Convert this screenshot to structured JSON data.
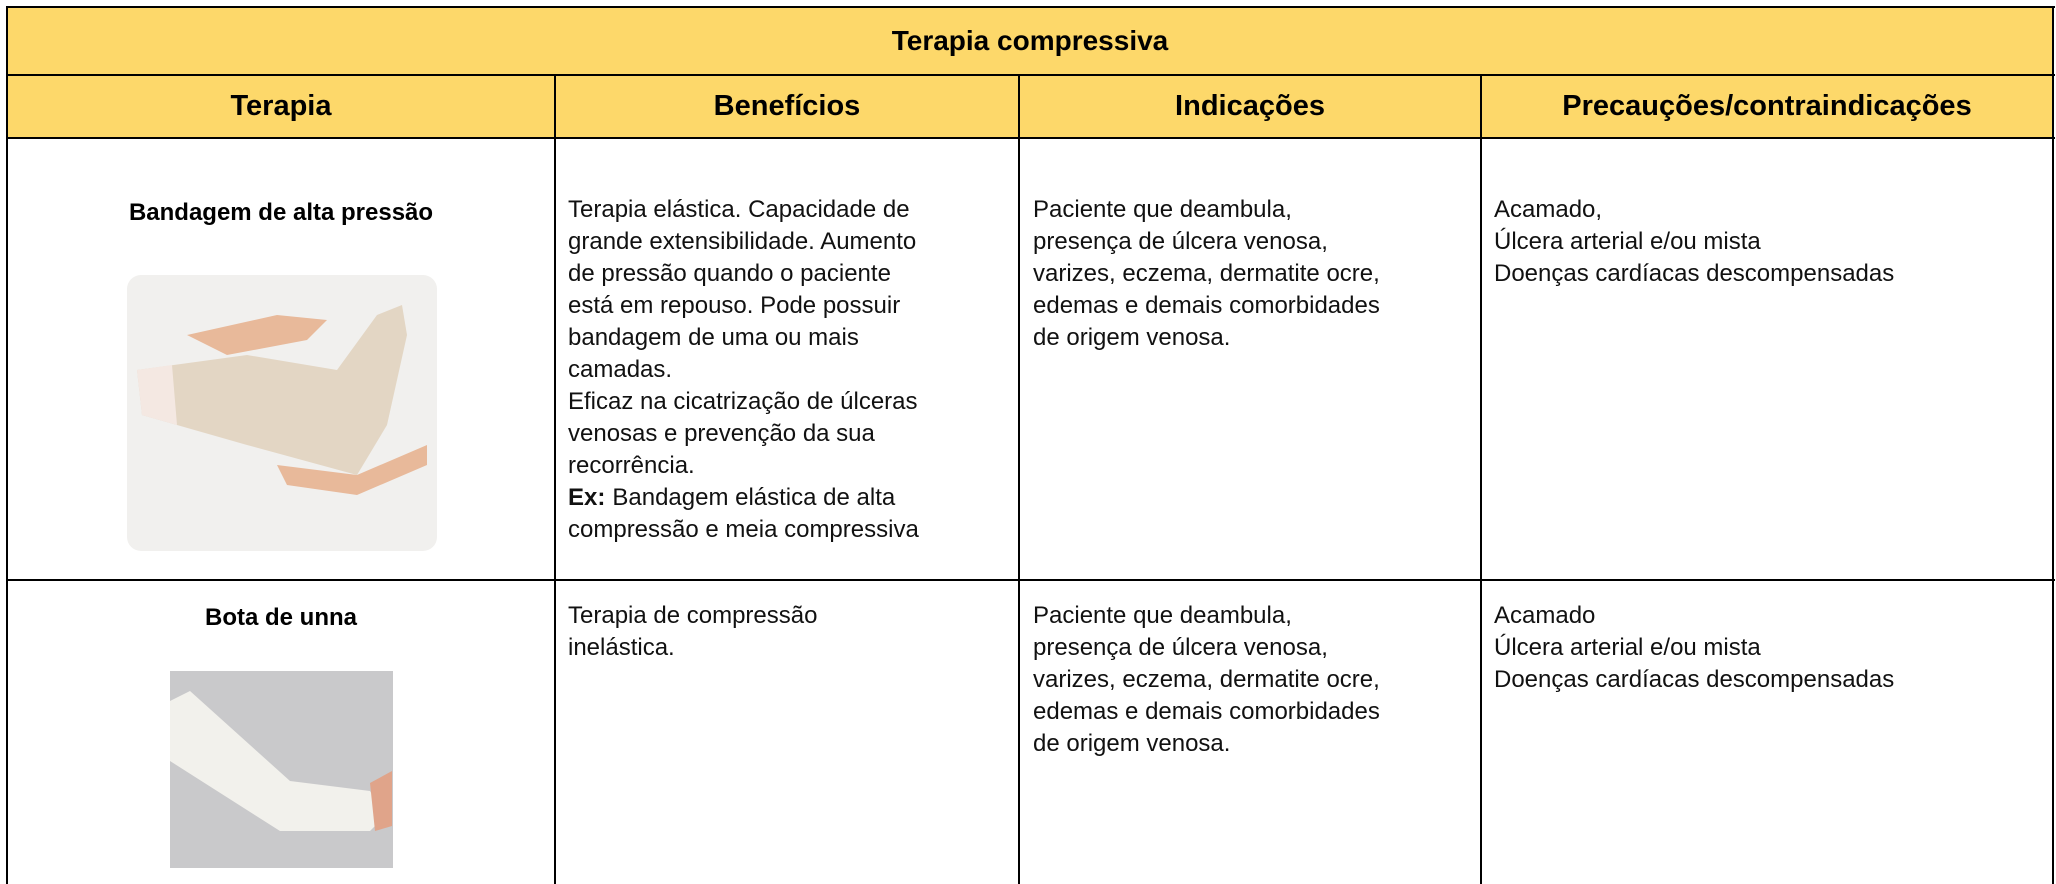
{
  "table": {
    "title": "Terapia compressiva",
    "headers": [
      "Terapia",
      "Benefícios",
      "Indicações",
      "Precauções/contraindicações"
    ],
    "rows": [
      {
        "therapy": "Bandagem de alta pressão",
        "benefits": [
          "Terapia elástica. Capacidade de",
          "grande extensibilidade. Aumento",
          "de pressão quando o paciente",
          "está em repouso. Pode possuir",
          "bandagem de uma ou mais",
          "camadas.",
          "Eficaz na cicatrização de úlceras",
          "venosas e prevenção da sua",
          "recorrência.",
          {
            "label": "Ex:",
            "text": "Bandagem elástica de alta"
          },
          "compressão e meia compressiva"
        ],
        "indications": [
          "Paciente que deambula,",
          "presença de úlcera venosa,",
          "varizes, eczema, dermatite ocre,",
          "edemas e demais comorbidades",
          "de origem venosa."
        ],
        "precautions": [
          "Acamado,",
          "Úlcera arterial e/ou mista",
          "Doenças cardíacas descompensadas"
        ]
      },
      {
        "therapy": "Bota de unna",
        "benefits": [
          "Terapia de compressão",
          "inelástica."
        ],
        "indications": [
          "Paciente que deambula,",
          "presença de úlcera venosa,",
          "varizes, eczema, dermatite ocre,",
          "edemas e demais comorbidades",
          "de origem venosa."
        ],
        "precautions": [
          "Acamado",
          "Úlcera arterial e/ou mista",
          "Doenças cardíacas descompensadas"
        ]
      }
    ]
  }
}
